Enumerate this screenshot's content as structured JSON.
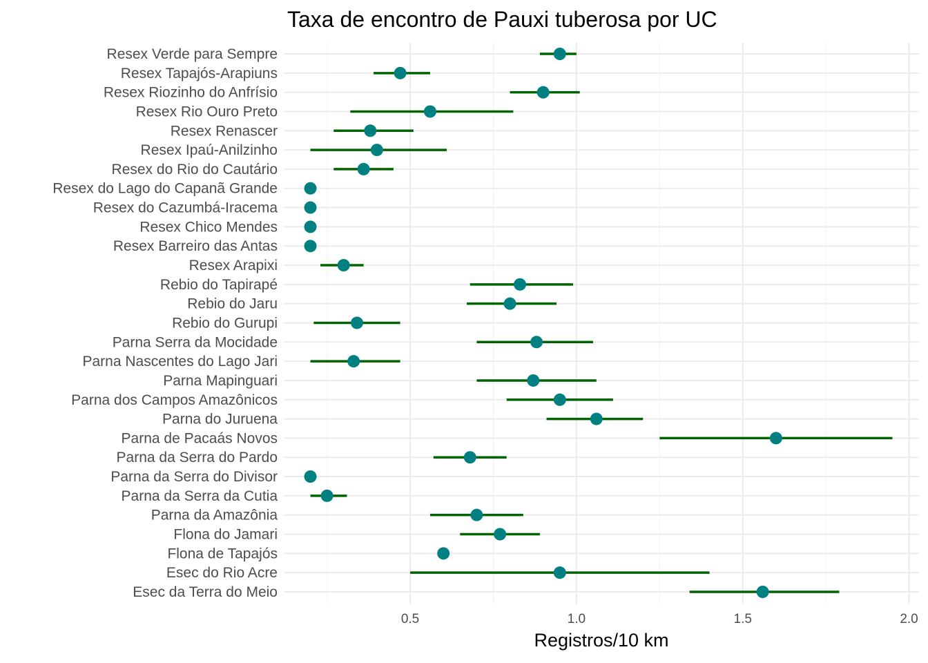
{
  "chart_data": {
    "type": "scatter",
    "title": "Taxa de encontro de Pauxi tuberosa por UC",
    "xlabel": "Registros/10 km",
    "ylabel": "",
    "xlim": [
      0.12,
      2.03
    ],
    "xticks": [
      0.5,
      1.0,
      1.5,
      2.0
    ],
    "xtick_labels": [
      "0.5",
      "1.0",
      "1.5",
      "2.0"
    ],
    "grid": true,
    "point_color": "#008080",
    "interval_color": "#006400",
    "categories": [
      "Resex Verde para Sempre",
      "Resex Tapajós-Arapiuns",
      "Resex Riozinho do Anfrísio",
      "Resex Rio Ouro Preto",
      "Resex Renascer",
      "Resex Ipaú-Anilzinho",
      "Resex do Rio do Cautário",
      "Resex do Lago do Capanã Grande",
      "Resex do Cazumbá-Iracema",
      "Resex Chico Mendes",
      "Resex Barreiro das Antas",
      "Resex Arapixi",
      "Rebio do Tapirapé",
      "Rebio do Jaru",
      "Rebio do Gurupi",
      "Parna Serra da Mocidade",
      "Parna Nascentes do Lago Jari",
      "Parna Mapinguari",
      "Parna dos Campos Amazônicos",
      "Parna do Juruena",
      "Parna de Pacaás Novos",
      "Parna da Serra do Pardo",
      "Parna da Serra do Divisor",
      "Parna da Serra da Cutia",
      "Parna da Amazônia",
      "Flona do Jamari",
      "Flona de Tapajós",
      "Esec do Rio Acre",
      "Esec da Terra do Meio"
    ],
    "estimate": [
      0.95,
      0.47,
      0.9,
      0.56,
      0.38,
      0.4,
      0.36,
      0.2,
      0.2,
      0.2,
      0.2,
      0.3,
      0.83,
      0.8,
      0.34,
      0.88,
      0.33,
      0.87,
      0.95,
      1.06,
      1.6,
      0.68,
      0.2,
      0.25,
      0.7,
      0.77,
      0.6,
      0.95,
      1.56
    ],
    "lower": [
      0.89,
      0.39,
      0.8,
      0.32,
      0.27,
      0.2,
      0.27,
      0.2,
      0.2,
      0.2,
      0.2,
      0.23,
      0.68,
      0.67,
      0.21,
      0.7,
      0.2,
      0.7,
      0.79,
      0.91,
      1.25,
      0.57,
      0.2,
      0.2,
      0.56,
      0.65,
      0.6,
      0.5,
      1.34
    ],
    "upper": [
      1.0,
      0.56,
      1.01,
      0.81,
      0.51,
      0.61,
      0.45,
      0.2,
      0.2,
      0.2,
      0.2,
      0.36,
      0.99,
      0.94,
      0.47,
      1.05,
      0.47,
      1.06,
      1.11,
      1.2,
      1.95,
      0.79,
      0.2,
      0.31,
      0.84,
      0.89,
      0.6,
      1.4,
      1.79
    ]
  }
}
